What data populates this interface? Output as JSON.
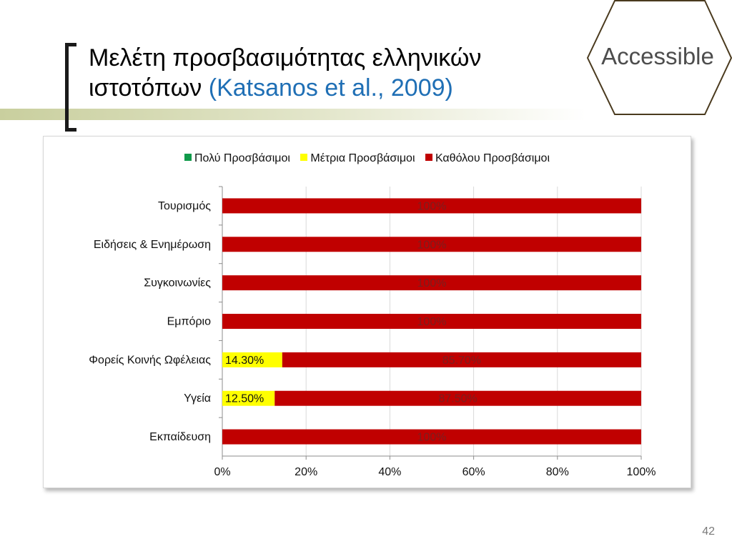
{
  "slide": {
    "title_line1": "Μελέτη προσβασιμότητας ελληνικών",
    "title_line2": "ιστοτόπων",
    "title_citation": "(Katsanos et al., 2009)",
    "badge_label": "Accessible",
    "page_number": "42"
  },
  "colors": {
    "very_accessible": "#109a4a",
    "moderately_accessible": "#ffff00",
    "not_accessible": "#c00000",
    "badge_outline": "#4a3a1e",
    "citation": "#1f6fb5"
  },
  "chart_data": {
    "type": "bar",
    "orientation": "horizontal",
    "stacked": "percent",
    "categories": [
      "Τουρισμός",
      "Ειδήσεις & Ενημέρωση",
      "Συγκοινωνίες",
      "Εμπόριο",
      "Φορείς Κοινής Ωφέλειας",
      "Υγεία",
      "Εκπαίδευση"
    ],
    "series": [
      {
        "name": "Πολύ Προσβάσιμοι",
        "values": [
          0,
          0,
          0,
          0,
          0,
          0,
          0
        ],
        "labels": [
          "",
          "",
          "",
          "",
          "",
          "",
          ""
        ],
        "color": "#109a4a"
      },
      {
        "name": "Μέτρια Προσβάσιμοι",
        "values": [
          0,
          0,
          0,
          0,
          14.3,
          12.5,
          0
        ],
        "labels": [
          "",
          "",
          "",
          "",
          "14.30%",
          "12.50%",
          ""
        ],
        "color": "#ffff00"
      },
      {
        "name": "Καθόλου Προσβάσιμοι",
        "values": [
          100,
          100,
          100,
          100,
          85.7,
          87.5,
          100
        ],
        "labels": [
          "100%",
          "100%",
          "100%",
          "100%",
          "85.70%",
          "87.50%",
          "100%"
        ],
        "color": "#c00000"
      }
    ],
    "xlim": [
      0,
      100
    ],
    "x_ticks": [
      "0%",
      "20%",
      "40%",
      "60%",
      "80%",
      "100%"
    ],
    "grid": true,
    "legend_position": "top"
  }
}
